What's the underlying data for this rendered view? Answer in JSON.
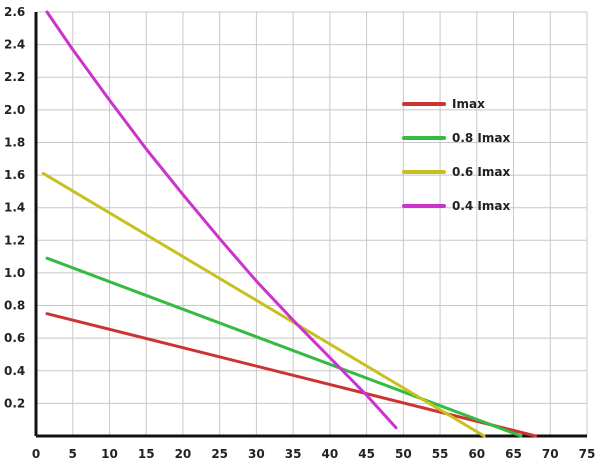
{
  "chart_data": {
    "type": "line",
    "title": "",
    "xlabel": "",
    "ylabel": "",
    "xlim": [
      0,
      75
    ],
    "ylim": [
      0,
      2.6
    ],
    "x_ticks": [
      "0",
      "5",
      "10",
      "15",
      "20",
      "25",
      "30",
      "35",
      "40",
      "45",
      "50",
      "55",
      "60",
      "65",
      "70",
      "75"
    ],
    "y_ticks": [
      "0.2",
      "0.4",
      "0.6",
      "0.8",
      "1.0",
      "1.2",
      "1.4",
      "1.6",
      "1.8",
      "2.0",
      "2.2",
      "2.4",
      "2.6"
    ],
    "grid": true,
    "legend_position": "top-right",
    "series": [
      {
        "name": "Imax",
        "color": "#cc3333",
        "x": [
          1.5,
          68
        ],
        "y": [
          0.75,
          0.0
        ]
      },
      {
        "name": "0.8 Imax",
        "color": "#33bb44",
        "x": [
          1.5,
          66
        ],
        "y": [
          1.09,
          0.0
        ]
      },
      {
        "name": "0.6 Imax",
        "color": "#c9c020",
        "x": [
          1.0,
          61
        ],
        "y": [
          1.61,
          0.0
        ]
      },
      {
        "name": "0.4 Imax",
        "color": "#cc33cc",
        "x": [
          1.5,
          5,
          10,
          15,
          20,
          25,
          30,
          35,
          40,
          45,
          49
        ],
        "y": [
          2.6,
          2.37,
          2.06,
          1.76,
          1.48,
          1.21,
          0.95,
          0.71,
          0.48,
          0.25,
          0.05
        ]
      }
    ]
  }
}
